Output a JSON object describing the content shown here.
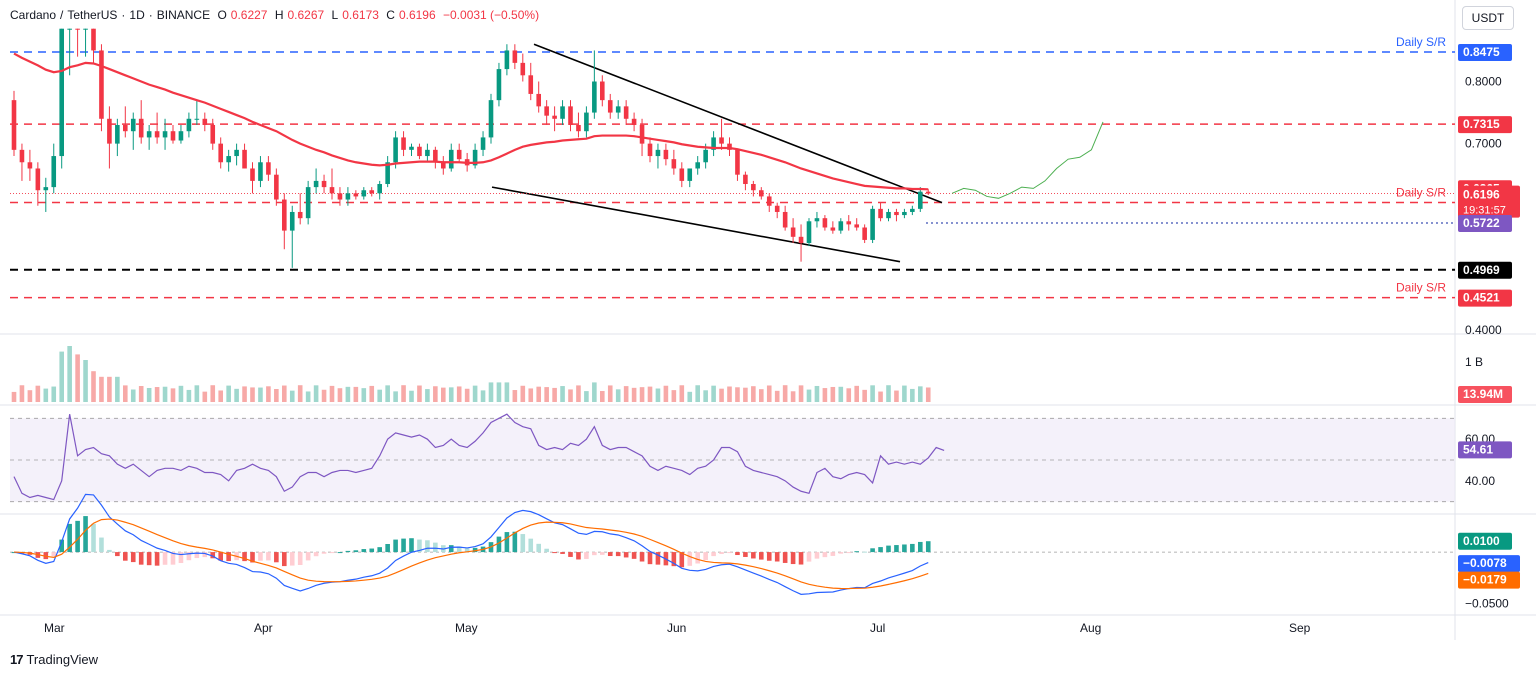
{
  "header": {
    "symbol": "Cardano",
    "pair": "TetherUS",
    "timeframe": "1D",
    "exchange": "BINANCE",
    "open_label": "O",
    "open": "0.6227",
    "high_label": "H",
    "high": "0.6267",
    "low_label": "L",
    "low": "0.6173",
    "close_label": "C",
    "close": "0.6196",
    "change": "−0.0031 (−0.50%)"
  },
  "currency_button": "USDT",
  "branding": "TradingView",
  "colors": {
    "up": "#089981",
    "down": "#f23645",
    "ema": "#f23645",
    "rsi": "#7e57c2",
    "macd": "#2962ff",
    "signal": "#ff6d00",
    "hist_up": "#26a69a",
    "hist_up_light": "#b2dfdb",
    "hist_down": "#ef5350",
    "hist_down_light": "#ffcdd2",
    "projection": "#4caf50"
  },
  "chart_data": [
    {
      "type": "candlestick",
      "title": "Cardano / TetherUS · 1D · BINANCE",
      "x_ticks": [
        "Mar",
        "Apr",
        "May",
        "Jun",
        "Jul",
        "Aug",
        "Sep"
      ],
      "y_ticks": [
        "0.8000",
        "0.7000",
        "0.4000"
      ],
      "ylim": [
        0.38,
        0.89
      ],
      "start_date": "2025-02-24",
      "candles": [
        [
          0.77,
          0.785,
          0.68,
          0.69
        ],
        [
          0.69,
          0.7,
          0.64,
          0.67
        ],
        [
          0.67,
          0.69,
          0.64,
          0.66
        ],
        [
          0.66,
          0.67,
          0.6,
          0.625
        ],
        [
          0.625,
          0.645,
          0.59,
          0.63
        ],
        [
          0.63,
          0.7,
          0.62,
          0.68
        ],
        [
          0.68,
          0.95,
          0.66,
          0.9
        ],
        [
          0.9,
          1.02,
          0.81,
          0.99
        ],
        [
          0.99,
          1.0,
          0.84,
          0.91
        ],
        [
          0.91,
          0.99,
          0.84,
          0.98
        ],
        [
          0.98,
          0.99,
          0.83,
          0.85
        ],
        [
          0.85,
          0.86,
          0.72,
          0.74
        ],
        [
          0.74,
          0.76,
          0.66,
          0.7
        ],
        [
          0.7,
          0.74,
          0.68,
          0.73
        ],
        [
          0.73,
          0.76,
          0.71,
          0.72
        ],
        [
          0.72,
          0.75,
          0.69,
          0.74
        ],
        [
          0.74,
          0.77,
          0.7,
          0.71
        ],
        [
          0.71,
          0.73,
          0.69,
          0.72
        ],
        [
          0.72,
          0.75,
          0.7,
          0.71
        ],
        [
          0.71,
          0.74,
          0.69,
          0.72
        ],
        [
          0.72,
          0.73,
          0.7,
          0.705
        ],
        [
          0.705,
          0.73,
          0.7,
          0.72
        ],
        [
          0.72,
          0.75,
          0.71,
          0.74
        ],
        [
          0.74,
          0.77,
          0.73,
          0.74
        ],
        [
          0.74,
          0.75,
          0.72,
          0.73
        ],
        [
          0.73,
          0.74,
          0.69,
          0.7
        ],
        [
          0.7,
          0.71,
          0.66,
          0.67
        ],
        [
          0.67,
          0.69,
          0.655,
          0.68
        ],
        [
          0.68,
          0.7,
          0.665,
          0.69
        ],
        [
          0.69,
          0.7,
          0.66,
          0.66
        ],
        [
          0.66,
          0.67,
          0.62,
          0.64
        ],
        [
          0.64,
          0.68,
          0.63,
          0.67
        ],
        [
          0.67,
          0.68,
          0.64,
          0.65
        ],
        [
          0.65,
          0.66,
          0.6,
          0.61
        ],
        [
          0.61,
          0.62,
          0.53,
          0.56
        ],
        [
          0.56,
          0.6,
          0.5,
          0.59
        ],
        [
          0.59,
          0.62,
          0.57,
          0.58
        ],
        [
          0.58,
          0.64,
          0.57,
          0.63
        ],
        [
          0.63,
          0.66,
          0.62,
          0.64
        ],
        [
          0.64,
          0.65,
          0.62,
          0.63
        ],
        [
          0.63,
          0.66,
          0.61,
          0.62
        ],
        [
          0.62,
          0.63,
          0.6,
          0.61
        ],
        [
          0.61,
          0.63,
          0.6,
          0.62
        ],
        [
          0.62,
          0.625,
          0.61,
          0.615
        ],
        [
          0.615,
          0.63,
          0.61,
          0.625
        ],
        [
          0.625,
          0.63,
          0.615,
          0.62
        ],
        [
          0.62,
          0.64,
          0.61,
          0.635
        ],
        [
          0.635,
          0.68,
          0.63,
          0.67
        ],
        [
          0.67,
          0.72,
          0.66,
          0.71
        ],
        [
          0.71,
          0.72,
          0.68,
          0.69
        ],
        [
          0.69,
          0.7,
          0.68,
          0.695
        ],
        [
          0.695,
          0.7,
          0.675,
          0.68
        ],
        [
          0.68,
          0.7,
          0.67,
          0.69
        ],
        [
          0.69,
          0.695,
          0.66,
          0.67
        ],
        [
          0.67,
          0.68,
          0.65,
          0.66
        ],
        [
          0.66,
          0.7,
          0.655,
          0.69
        ],
        [
          0.69,
          0.7,
          0.67,
          0.675
        ],
        [
          0.675,
          0.685,
          0.655,
          0.665
        ],
        [
          0.665,
          0.7,
          0.66,
          0.69
        ],
        [
          0.69,
          0.72,
          0.68,
          0.71
        ],
        [
          0.71,
          0.78,
          0.7,
          0.77
        ],
        [
          0.77,
          0.83,
          0.76,
          0.82
        ],
        [
          0.82,
          0.86,
          0.81,
          0.85
        ],
        [
          0.85,
          0.86,
          0.82,
          0.83
        ],
        [
          0.83,
          0.845,
          0.8,
          0.81
        ],
        [
          0.81,
          0.83,
          0.77,
          0.78
        ],
        [
          0.78,
          0.8,
          0.75,
          0.76
        ],
        [
          0.76,
          0.77,
          0.73,
          0.745
        ],
        [
          0.745,
          0.76,
          0.72,
          0.74
        ],
        [
          0.74,
          0.77,
          0.73,
          0.76
        ],
        [
          0.76,
          0.77,
          0.72,
          0.73
        ],
        [
          0.73,
          0.75,
          0.71,
          0.72
        ],
        [
          0.72,
          0.76,
          0.71,
          0.75
        ],
        [
          0.75,
          0.85,
          0.74,
          0.8
        ],
        [
          0.8,
          0.81,
          0.76,
          0.77
        ],
        [
          0.77,
          0.78,
          0.74,
          0.75
        ],
        [
          0.75,
          0.77,
          0.74,
          0.76
        ],
        [
          0.76,
          0.77,
          0.73,
          0.74
        ],
        [
          0.74,
          0.75,
          0.72,
          0.73
        ],
        [
          0.73,
          0.74,
          0.68,
          0.7
        ],
        [
          0.7,
          0.71,
          0.67,
          0.68
        ],
        [
          0.68,
          0.7,
          0.66,
          0.69
        ],
        [
          0.69,
          0.7,
          0.665,
          0.675
        ],
        [
          0.675,
          0.69,
          0.65,
          0.66
        ],
        [
          0.66,
          0.67,
          0.63,
          0.64
        ],
        [
          0.64,
          0.66,
          0.63,
          0.66
        ],
        [
          0.66,
          0.68,
          0.65,
          0.67
        ],
        [
          0.67,
          0.7,
          0.66,
          0.69
        ],
        [
          0.69,
          0.72,
          0.68,
          0.71
        ],
        [
          0.71,
          0.74,
          0.69,
          0.7
        ],
        [
          0.7,
          0.71,
          0.68,
          0.69
        ],
        [
          0.69,
          0.69,
          0.64,
          0.65
        ],
        [
          0.65,
          0.655,
          0.625,
          0.635
        ],
        [
          0.635,
          0.64,
          0.615,
          0.625
        ],
        [
          0.625,
          0.63,
          0.61,
          0.615
        ],
        [
          0.615,
          0.62,
          0.59,
          0.6
        ],
        [
          0.6,
          0.605,
          0.58,
          0.59
        ],
        [
          0.59,
          0.6,
          0.56,
          0.565
        ],
        [
          0.565,
          0.58,
          0.54,
          0.55
        ],
        [
          0.55,
          0.57,
          0.51,
          0.54
        ],
        [
          0.54,
          0.58,
          0.535,
          0.575
        ],
        [
          0.575,
          0.59,
          0.565,
          0.58
        ],
        [
          0.58,
          0.585,
          0.56,
          0.565
        ],
        [
          0.565,
          0.575,
          0.555,
          0.56
        ],
        [
          0.56,
          0.58,
          0.555,
          0.575
        ],
        [
          0.575,
          0.585,
          0.56,
          0.57
        ],
        [
          0.57,
          0.58,
          0.56,
          0.565
        ],
        [
          0.565,
          0.57,
          0.54,
          0.545
        ],
        [
          0.545,
          0.6,
          0.54,
          0.595
        ],
        [
          0.595,
          0.605,
          0.575,
          0.58
        ],
        [
          0.58,
          0.595,
          0.575,
          0.59
        ],
        [
          0.59,
          0.595,
          0.575,
          0.585
        ],
        [
          0.585,
          0.595,
          0.58,
          0.59
        ],
        [
          0.59,
          0.6,
          0.585,
          0.595
        ],
        [
          0.595,
          0.63,
          0.59,
          0.6227
        ],
        [
          0.6227,
          0.6267,
          0.6173,
          0.6196
        ]
      ],
      "ema_label": "0.6265",
      "ema": [
        0.845,
        0.838,
        0.832,
        0.826,
        0.819,
        0.815,
        0.817,
        0.823,
        0.826,
        0.83,
        0.829,
        0.825,
        0.82,
        0.815,
        0.81,
        0.805,
        0.8,
        0.795,
        0.791,
        0.787,
        0.782,
        0.778,
        0.774,
        0.77,
        0.766,
        0.761,
        0.756,
        0.751,
        0.746,
        0.741,
        0.735,
        0.73,
        0.725,
        0.72,
        0.713,
        0.706,
        0.7,
        0.695,
        0.69,
        0.686,
        0.681,
        0.677,
        0.673,
        0.67,
        0.668,
        0.666,
        0.665,
        0.666,
        0.668,
        0.669,
        0.67,
        0.671,
        0.671,
        0.671,
        0.67,
        0.67,
        0.67,
        0.669,
        0.669,
        0.67,
        0.673,
        0.678,
        0.684,
        0.69,
        0.695,
        0.698,
        0.7,
        0.702,
        0.703,
        0.705,
        0.706,
        0.707,
        0.708,
        0.712,
        0.713,
        0.713,
        0.713,
        0.713,
        0.712,
        0.71,
        0.708,
        0.706,
        0.704,
        0.702,
        0.699,
        0.697,
        0.695,
        0.694,
        0.693,
        0.693,
        0.693,
        0.691,
        0.688,
        0.685,
        0.682,
        0.678,
        0.674,
        0.67,
        0.665,
        0.66,
        0.656,
        0.652,
        0.648,
        0.644,
        0.641,
        0.638,
        0.635,
        0.632,
        0.631,
        0.63,
        0.629,
        0.628,
        0.628,
        0.627,
        0.627,
        0.6265
      ],
      "levels": [
        {
          "value": 0.8475,
          "label": "0.8475",
          "tag": "Daily S/R",
          "color": "#2962ff"
        },
        {
          "value": 0.7315,
          "label": "0.7315",
          "tag": "",
          "color": "#f23645"
        },
        {
          "value": 0.6053,
          "label": "0.6053",
          "tag": "Daily S/R",
          "color": "#f23645"
        },
        {
          "value": 0.4969,
          "label": "0.4969",
          "tag": "",
          "color": "#000000"
        },
        {
          "value": 0.4521,
          "label": "0.4521",
          "tag": "Daily S/R",
          "color": "#f23645"
        }
      ],
      "last_price": {
        "value": 0.6196,
        "label": "0.6196",
        "countdown": "19:31:57"
      },
      "low_marker": {
        "value": 0.5722,
        "label": "0.5722"
      },
      "wedge": {
        "upper": [
          [
            6,
            0.86
          ],
          [
            112,
            0.605
          ]
        ],
        "lower": [
          [
            -36,
            0.63
          ],
          [
            -30,
            0.51
          ]
        ]
      },
      "projection": [
        [
          0.62,
          0.628,
          0.625,
          0.615,
          0.612,
          0.62,
          0.63,
          0.628,
          0.64,
          0.66,
          0.675,
          0.678,
          0.69,
          0.735
        ]
      ]
    },
    {
      "type": "bar",
      "title": "Volume",
      "y_ticks": [
        "1 B"
      ],
      "last_label": "13.94M"
    },
    {
      "type": "line",
      "title": "RSI",
      "ylim": [
        26,
        74
      ],
      "y_ticks": [
        "60.00",
        "40.00"
      ],
      "bands": [
        70,
        50,
        30
      ],
      "last_label": "54.61",
      "values": [
        42,
        34,
        32,
        33,
        32,
        31,
        40,
        72,
        52,
        55,
        56,
        53,
        52,
        48,
        46,
        48,
        45,
        42,
        45,
        46,
        46,
        45,
        47,
        46,
        44,
        44,
        43,
        40,
        45,
        46,
        48,
        46,
        45,
        42,
        35,
        37,
        42,
        44,
        44,
        42,
        44,
        45,
        45,
        44,
        45,
        46,
        52,
        60,
        63,
        62,
        61,
        62,
        60,
        56,
        57,
        60,
        57,
        56,
        59,
        63,
        68,
        70,
        72,
        68,
        66,
        65,
        57,
        55,
        56,
        55,
        58,
        57,
        60,
        66,
        57,
        55,
        56,
        56,
        54,
        52,
        47,
        45,
        47,
        46,
        45,
        43,
        46,
        47,
        50,
        56,
        56,
        54,
        47,
        45,
        44,
        43,
        42,
        40,
        37,
        35,
        34,
        44,
        46,
        42,
        41,
        43,
        44,
        43,
        39,
        52,
        48,
        49,
        48,
        49,
        48,
        51,
        56,
        54.61
      ]
    },
    {
      "type": "bar",
      "title": "MACD",
      "ylim": [
        -0.058,
        0.033
      ],
      "y_ticks": [
        "-0.0500"
      ],
      "labels": [
        "0.0100",
        "-0.0078",
        "-0.0179"
      ]
    }
  ]
}
